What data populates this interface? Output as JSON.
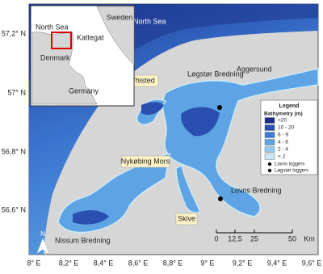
{
  "map": {
    "axes": {
      "lat": [
        "57,2° N",
        "57° N",
        "56,8° N",
        "56,6° N"
      ],
      "lon": [
        "8° E",
        "8,2° E",
        "8,4° E",
        "8,6° E",
        "8,8° E",
        "9° E",
        "9,2° E",
        "9,4° E",
        "9,6° E"
      ]
    },
    "places": {
      "north_sea": "North Sea",
      "thisted": "Thisted",
      "logstor": "Løgstør Bredning",
      "aggersund": "Aggersund",
      "nykobing": "Nykøbing Mors",
      "lovns": "Lovns Bredning",
      "skive": "Skive",
      "nissum": "Nissum Bredning"
    },
    "inset": {
      "sweden": "Sweden",
      "north_sea": "North Sea",
      "kattegat": "Kattegat",
      "denmark": "Denmark",
      "germany": "Germany"
    },
    "legend": {
      "title": "Legend",
      "subtitle": "Bathymetry (m)",
      "items": [
        {
          "label": ">20",
          "color": "#1b2f86"
        },
        {
          "label": "10 - 20",
          "color": "#2a4fb0"
        },
        {
          "label": "6 - 9",
          "color": "#3f7cd6"
        },
        {
          "label": "4 - 6",
          "color": "#5ea3e3"
        },
        {
          "label": "2 - 4",
          "color": "#92cbee"
        },
        {
          "label": "< 2",
          "color": "#cbeaf6"
        }
      ],
      "markers": [
        "Lovns loggers",
        "Løgstør loggers"
      ]
    },
    "scale": {
      "labels": [
        "0",
        "12,5",
        "25",
        "50"
      ],
      "unit": "Km"
    },
    "north": "N"
  }
}
